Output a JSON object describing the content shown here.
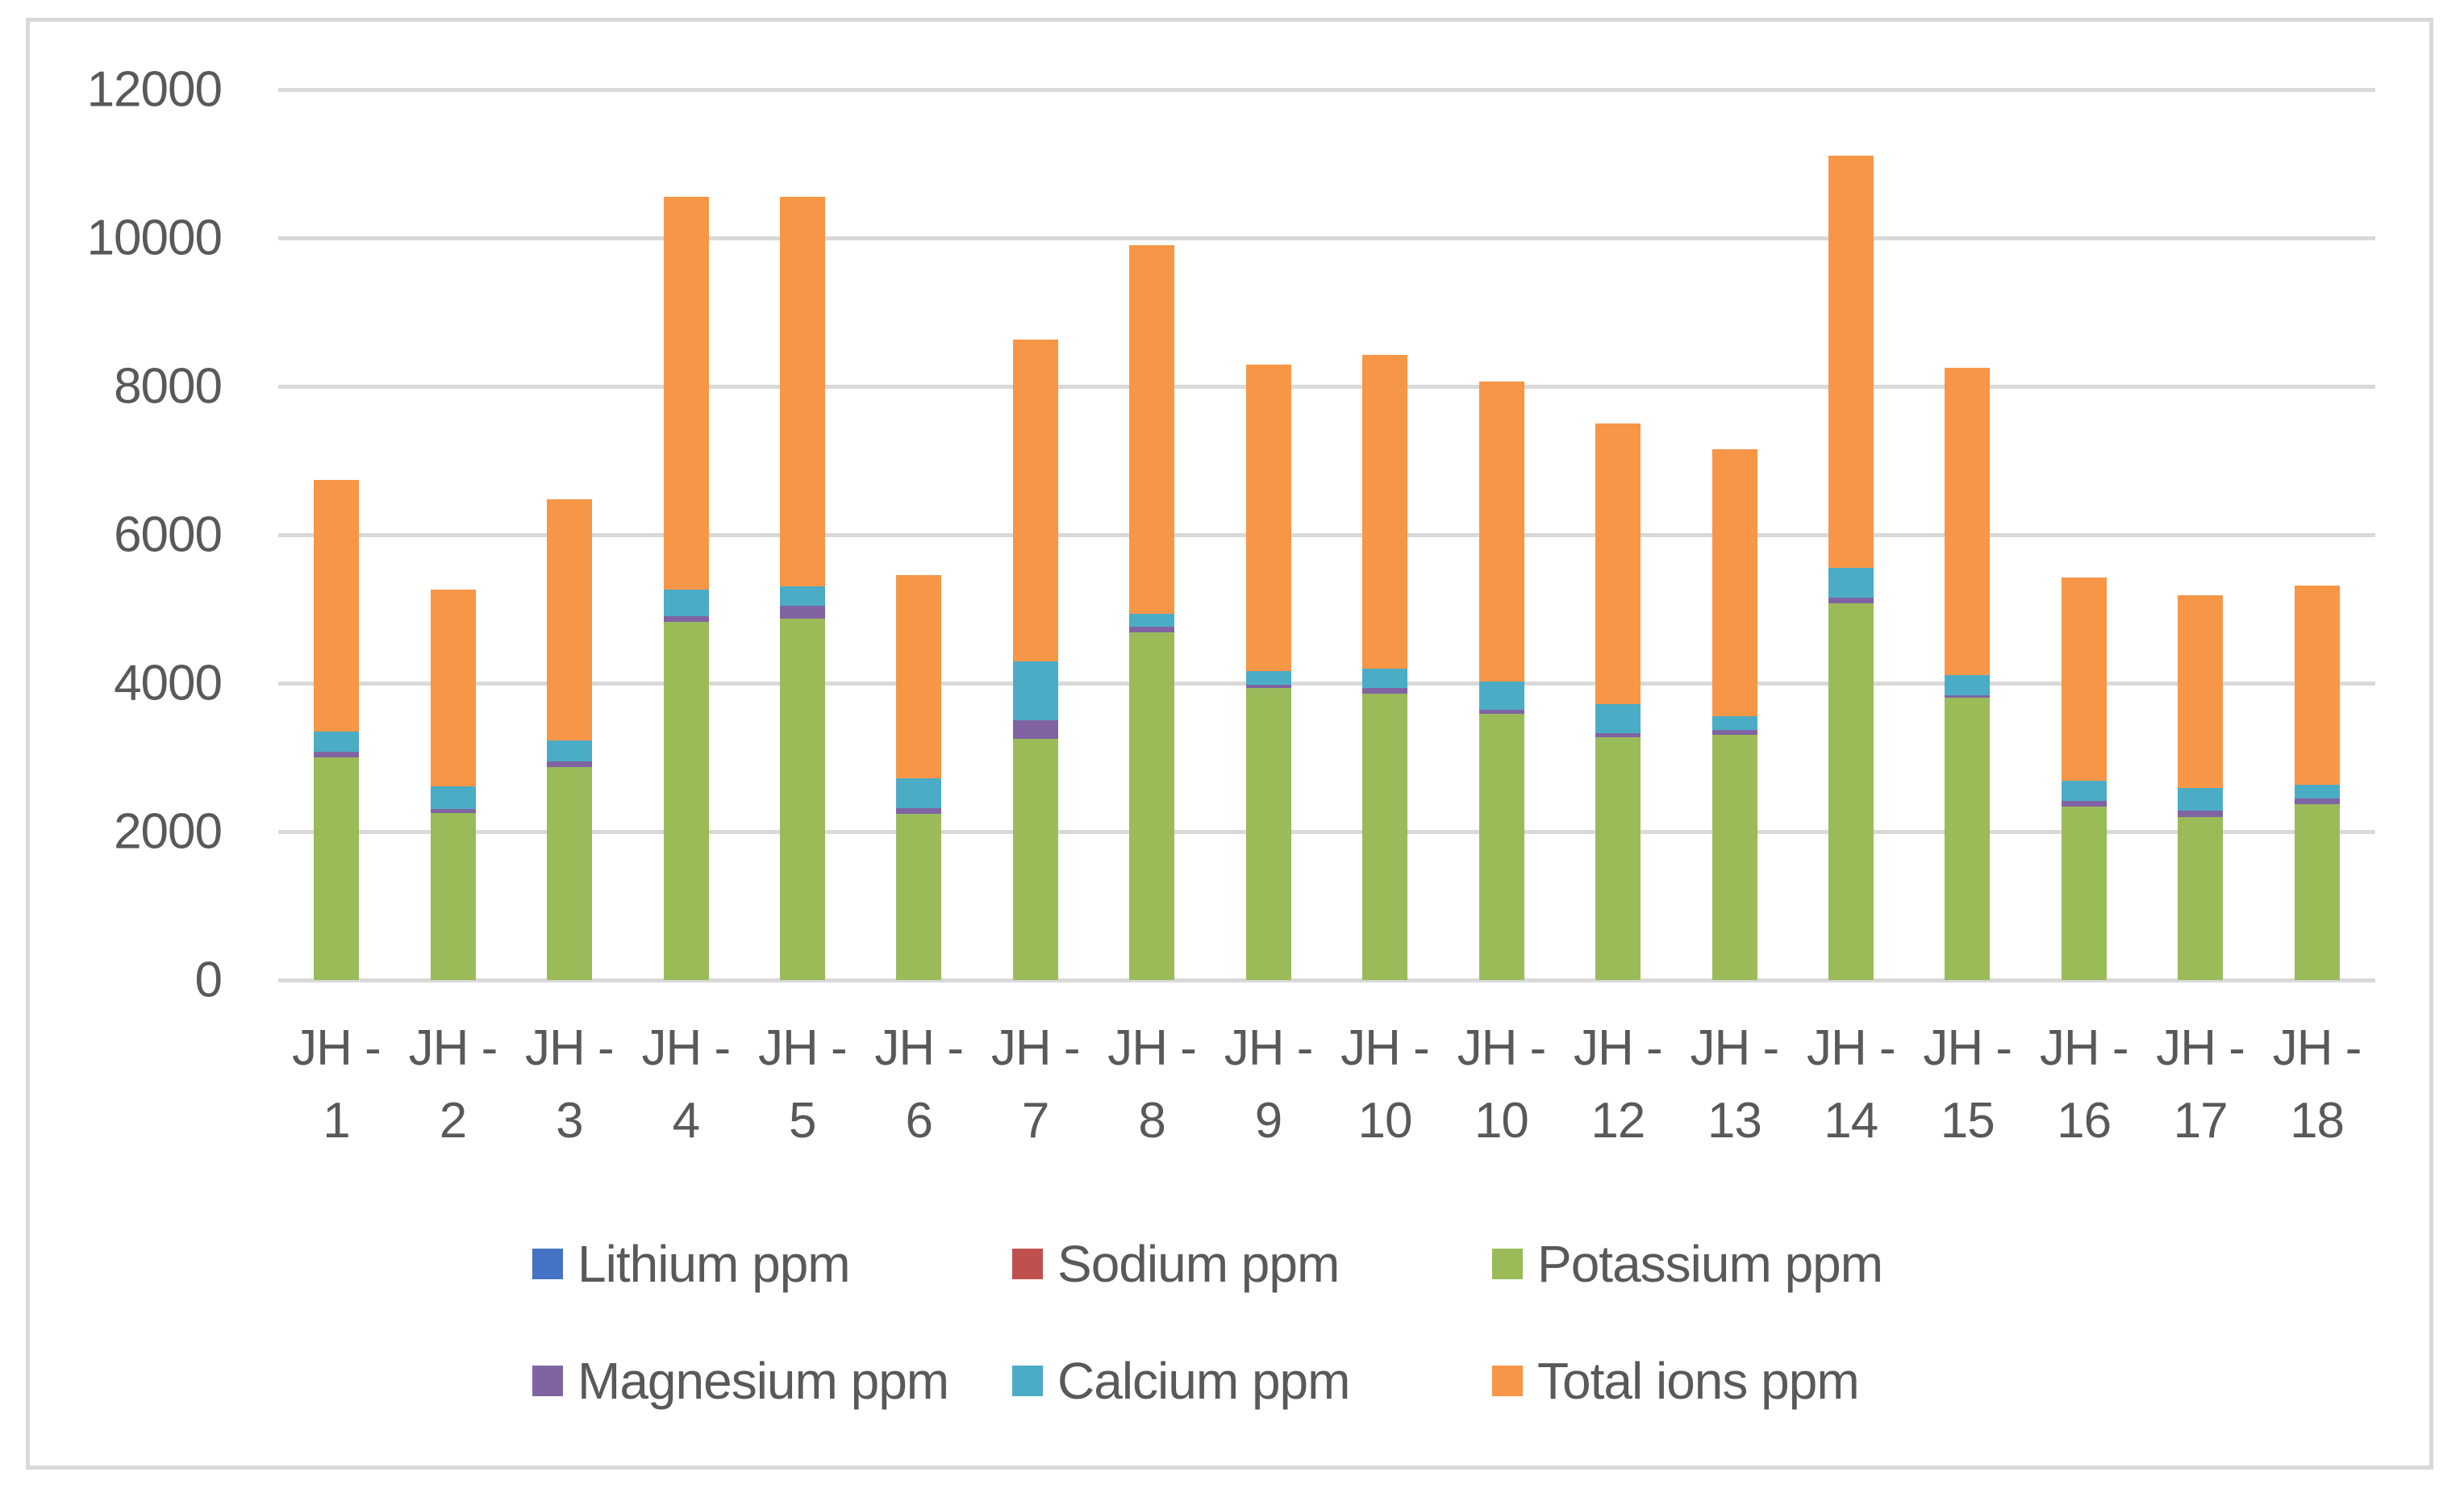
{
  "chart_data": {
    "type": "bar",
    "stacked": true,
    "title": "",
    "xlabel": "",
    "ylabel": "",
    "ylim": [
      0,
      12000
    ],
    "yticks": [
      0,
      2000,
      4000,
      6000,
      8000,
      10000,
      12000
    ],
    "grid": true,
    "legend_position": "bottom",
    "categories": [
      "JH - 1",
      "JH - 2",
      "JH - 3",
      "JH - 4",
      "JH - 5",
      "JH - 6",
      "JH - 7",
      "JH - 8",
      "JH - 9",
      "JH - 10",
      "JH - 10",
      "JH - 12",
      "JH - 13",
      "JH - 14",
      "JH - 15",
      "JH - 16",
      "JH - 17",
      "JH - 18"
    ],
    "series": [
      {
        "name": "Lithium ppm",
        "color": "#4472c4",
        "values": [
          0,
          0,
          0,
          0,
          0,
          0,
          0,
          0,
          0,
          0,
          0,
          0,
          0,
          0,
          0,
          0,
          0,
          0
        ]
      },
      {
        "name": "Sodium ppm",
        "color": "#c0504d",
        "values": [
          0,
          0,
          0,
          0,
          0,
          0,
          0,
          0,
          0,
          0,
          0,
          0,
          0,
          0,
          0,
          0,
          0,
          0
        ]
      },
      {
        "name": "Potassium ppm",
        "color": "#9bbb59",
        "values": [
          3000,
          2250,
          2870,
          4830,
          4870,
          2240,
          3250,
          4680,
          3930,
          3860,
          3590,
          3270,
          3300,
          5080,
          3800,
          2340,
          2200,
          2370
        ]
      },
      {
        "name": "Magnesium ppm",
        "color": "#8064a2",
        "values": [
          80,
          50,
          80,
          70,
          170,
          80,
          250,
          80,
          50,
          80,
          50,
          60,
          70,
          70,
          40,
          70,
          80,
          80
        ]
      },
      {
        "name": "Calcium ppm",
        "color": "#4bacc6",
        "values": [
          270,
          310,
          280,
          360,
          260,
          400,
          790,
          180,
          180,
          260,
          380,
          390,
          180,
          400,
          270,
          270,
          310,
          180
        ]
      },
      {
        "name": "Total ions ppm",
        "color": "#f79646",
        "values": [
          3390,
          2650,
          3250,
          5300,
          5260,
          2740,
          4340,
          4960,
          4130,
          4220,
          4050,
          3780,
          3600,
          5560,
          4140,
          2740,
          2600,
          2690
        ]
      }
    ],
    "stack_totals": [
      6740,
      5260,
      6480,
      10560,
      10560,
      5460,
      8630,
      9900,
      8290,
      8420,
      8070,
      7500,
      7150,
      11110,
      8250,
      5420,
      5190,
      5320
    ]
  },
  "axis": {
    "y_labels": [
      "0",
      "2000",
      "4000",
      "6000",
      "8000",
      "10000",
      "12000"
    ],
    "x_line1": [
      "JH -",
      "JH -",
      "JH -",
      "JH -",
      "JH -",
      "JH -",
      "JH -",
      "JH -",
      "JH -",
      "JH -",
      "JH -",
      "JH -",
      "JH -",
      "JH -",
      "JH -",
      "JH -",
      "JH -",
      "JH -"
    ],
    "x_line2": [
      "1",
      "2",
      "3",
      "4",
      "5",
      "6",
      "7",
      "8",
      "9",
      "10",
      "10",
      "12",
      "13",
      "14",
      "15",
      "16",
      "17",
      "18"
    ]
  },
  "legend": {
    "items": [
      {
        "label": "Lithium ppm",
        "color": "#4472c4"
      },
      {
        "label": "Sodium ppm",
        "color": "#c0504d"
      },
      {
        "label": "Potassium ppm",
        "color": "#9bbb59"
      },
      {
        "label": "Magnesium ppm",
        "color": "#8064a2"
      },
      {
        "label": "Calcium ppm",
        "color": "#4bacc6"
      },
      {
        "label": "Total ions ppm",
        "color": "#f79646"
      }
    ]
  }
}
